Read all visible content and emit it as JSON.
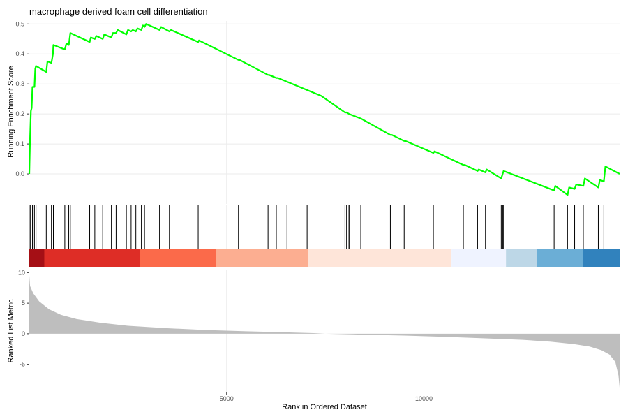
{
  "chart_data": {
    "type": "line",
    "title": "macrophage derived foam cell differentiation",
    "xlabel": "Rank in Ordered Dataset",
    "xlim": [
      0,
      14960
    ],
    "x_ticks": [
      5000,
      10000
    ],
    "x_tick_labels": [
      "5000",
      "10000"
    ],
    "line_color": "#00ff00",
    "es_panel": {
      "ylabel": "Running Enrichment Score",
      "ylim": [
        -0.1,
        0.51
      ],
      "y_ticks": [
        0.0,
        0.1,
        0.2,
        0.3,
        0.4,
        0.5
      ],
      "y_tick_labels": [
        "0.0",
        "0.1",
        "0.2",
        "0.3",
        "0.4",
        "0.5"
      ],
      "grid": true,
      "points": [
        [
          0,
          0.0
        ],
        [
          20,
          0.12
        ],
        [
          40,
          0.21
        ],
        [
          60,
          0.22
        ],
        [
          80,
          0.29
        ],
        [
          100,
          0.29
        ],
        [
          130,
          0.29
        ],
        [
          150,
          0.35
        ],
        [
          170,
          0.36
        ],
        [
          430,
          0.34
        ],
        [
          460,
          0.375
        ],
        [
          560,
          0.37
        ],
        [
          600,
          0.4
        ],
        [
          610,
          0.43
        ],
        [
          900,
          0.415
        ],
        [
          940,
          0.435
        ],
        [
          1000,
          0.43
        ],
        [
          1040,
          0.47
        ],
        [
          1530,
          0.44
        ],
        [
          1560,
          0.455
        ],
        [
          1660,
          0.45
        ],
        [
          1700,
          0.46
        ],
        [
          1860,
          0.45
        ],
        [
          1900,
          0.465
        ],
        [
          2080,
          0.455
        ],
        [
          2120,
          0.47
        ],
        [
          2200,
          0.47
        ],
        [
          2240,
          0.48
        ],
        [
          2460,
          0.465
        ],
        [
          2500,
          0.48
        ],
        [
          2580,
          0.475
        ],
        [
          2620,
          0.48
        ],
        [
          2700,
          0.475
        ],
        [
          2740,
          0.485
        ],
        [
          2840,
          0.48
        ],
        [
          2880,
          0.495
        ],
        [
          2920,
          0.49
        ],
        [
          2960,
          0.5
        ],
        [
          3300,
          0.48
        ],
        [
          3340,
          0.49
        ],
        [
          3550,
          0.475
        ],
        [
          3590,
          0.48
        ],
        [
          4280,
          0.44
        ],
        [
          4300,
          0.445
        ],
        [
          5300,
          0.38
        ],
        [
          5330,
          0.38
        ],
        [
          6050,
          0.33
        ],
        [
          6080,
          0.33
        ],
        [
          6260,
          0.32
        ],
        [
          6300,
          0.32
        ],
        [
          7400,
          0.26
        ],
        [
          8000,
          0.205
        ],
        [
          8040,
          0.205
        ],
        [
          8100,
          0.2
        ],
        [
          8400,
          0.185
        ],
        [
          9150,
          0.13
        ],
        [
          9190,
          0.13
        ],
        [
          9500,
          0.11
        ],
        [
          9530,
          0.11
        ],
        [
          10240,
          0.07
        ],
        [
          10270,
          0.075
        ],
        [
          11000,
          0.03
        ],
        [
          11040,
          0.03
        ],
        [
          11360,
          0.01
        ],
        [
          11390,
          0.015
        ],
        [
          11560,
          0.005
        ],
        [
          11590,
          0.015
        ],
        [
          11960,
          -0.015
        ],
        [
          12020,
          0.01
        ],
        [
          13300,
          -0.055
        ],
        [
          13330,
          -0.04
        ],
        [
          13640,
          -0.07
        ],
        [
          13680,
          -0.045
        ],
        [
          13820,
          -0.05
        ],
        [
          13860,
          -0.035
        ],
        [
          14040,
          -0.04
        ],
        [
          14080,
          -0.015
        ],
        [
          14420,
          -0.045
        ],
        [
          14460,
          -0.02
        ],
        [
          14560,
          -0.025
        ],
        [
          14600,
          0.025
        ],
        [
          14960,
          0.0
        ]
      ]
    },
    "hits_panel": {
      "hits": [
        20,
        40,
        80,
        130,
        170,
        430,
        560,
        610,
        900,
        1000,
        1040,
        1530,
        1660,
        1860,
        2080,
        2200,
        2460,
        2580,
        2700,
        2840,
        2920,
        3300,
        3550,
        4280,
        5300,
        6050,
        6260,
        6530,
        7040,
        8000,
        8040,
        8100,
        8120,
        8400,
        9150,
        9500,
        10240,
        11000,
        11360,
        11560,
        11960,
        12000,
        12020,
        13300,
        13640,
        13820,
        14040,
        14420,
        14560
      ],
      "color_bands": [
        {
          "from": 0,
          "to": 380,
          "color": "#a50f15"
        },
        {
          "from": 380,
          "to": 2800,
          "color": "#de2d26"
        },
        {
          "from": 2800,
          "to": 4730,
          "color": "#fb6a4a"
        },
        {
          "from": 4730,
          "to": 7060,
          "color": "#fcae91"
        },
        {
          "from": 7060,
          "to": 10700,
          "color": "#fee5d9"
        },
        {
          "from": 10700,
          "to": 12080,
          "color": "#eff3ff"
        },
        {
          "from": 12080,
          "to": 12860,
          "color": "#bdd7e7"
        },
        {
          "from": 12860,
          "to": 14040,
          "color": "#6baed6"
        },
        {
          "from": 14040,
          "to": 14960,
          "color": "#3182bd"
        }
      ]
    },
    "metric_panel": {
      "ylabel": "Ranked List Metric",
      "ylim": [
        -9.5,
        10.5
      ],
      "y_ticks": [
        -5,
        0,
        5,
        10
      ],
      "y_tick_labels": [
        "-5",
        "0",
        "5",
        "10"
      ],
      "fill_color": "#bebebe",
      "points": [
        [
          0,
          9.5
        ],
        [
          20,
          7.8
        ],
        [
          100,
          6.6
        ],
        [
          250,
          5.3
        ],
        [
          500,
          4.0
        ],
        [
          800,
          3.1
        ],
        [
          1200,
          2.4
        ],
        [
          1800,
          1.8
        ],
        [
          2500,
          1.3
        ],
        [
          3500,
          0.9
        ],
        [
          4500,
          0.6
        ],
        [
          5500,
          0.4
        ],
        [
          6500,
          0.22
        ],
        [
          7200,
          0.1
        ],
        [
          7500,
          0.0
        ],
        [
          8500,
          -0.15
        ],
        [
          9500,
          -0.3
        ],
        [
          10500,
          -0.5
        ],
        [
          11500,
          -0.75
        ],
        [
          12500,
          -1.0
        ],
        [
          13200,
          -1.3
        ],
        [
          13800,
          -1.7
        ],
        [
          14200,
          -2.1
        ],
        [
          14500,
          -2.7
        ],
        [
          14700,
          -3.4
        ],
        [
          14850,
          -4.6
        ],
        [
          14930,
          -6.8
        ],
        [
          14960,
          -8.8
        ]
      ]
    }
  }
}
